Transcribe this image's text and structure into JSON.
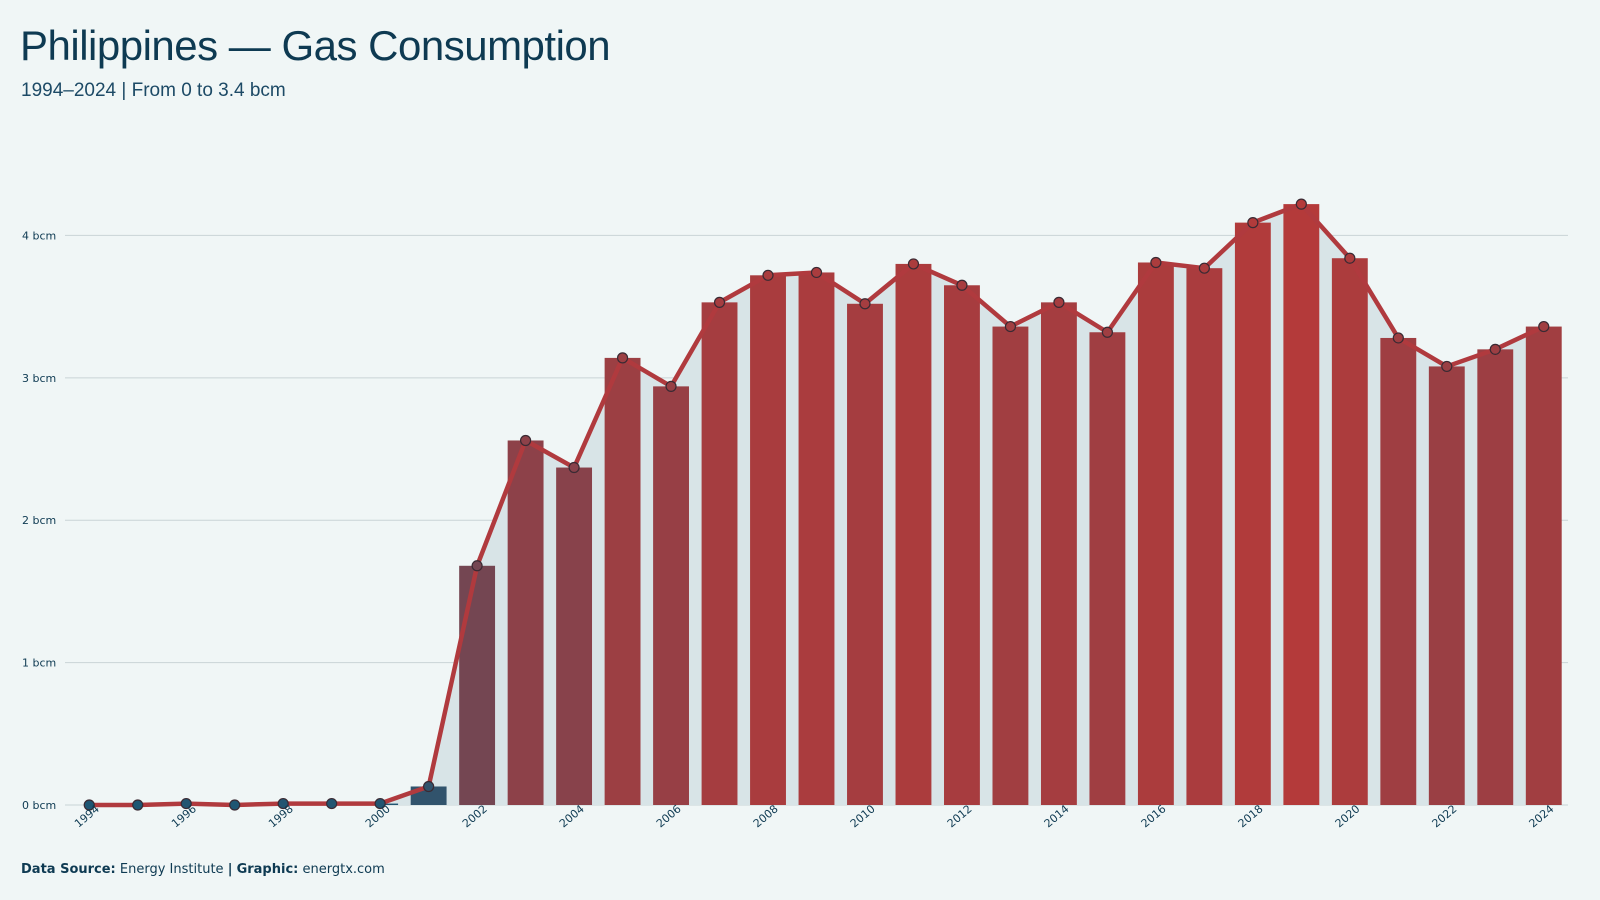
{
  "header": {
    "title": "Philippines — Gas Consumption",
    "subtitle": "1994–2024 | From 0 to 3.4 bcm"
  },
  "footer": {
    "source_label": "Data Source:",
    "source_value": "Energy Institute",
    "separator": "|",
    "graphic_label": "Graphic:",
    "graphic_value": "energtx.com"
  },
  "colors": {
    "background": "#f0f6f6",
    "line": "#b03a3e",
    "bar_low": "#1e5673",
    "bar_high": "#b43a3a",
    "area_fill": "#d8e4e7",
    "grid": "#c9d4d6"
  },
  "chart_data": {
    "type": "bar",
    "overlay": "line",
    "unit": "bcm",
    "x": [
      1994,
      1995,
      1996,
      1997,
      1998,
      1999,
      2000,
      2001,
      2002,
      2003,
      2004,
      2005,
      2006,
      2007,
      2008,
      2009,
      2010,
      2011,
      2012,
      2013,
      2014,
      2015,
      2016,
      2017,
      2018,
      2019,
      2020,
      2021,
      2022,
      2023,
      2024
    ],
    "values": [
      0,
      0,
      0.01,
      0,
      0.01,
      0.01,
      0.01,
      0.13,
      1.68,
      2.56,
      2.37,
      3.14,
      2.94,
      3.53,
      3.72,
      3.74,
      3.52,
      3.8,
      3.65,
      3.36,
      3.53,
      3.32,
      3.81,
      3.77,
      4.09,
      4.22,
      3.84,
      3.28,
      3.08,
      3.2,
      3.36
    ],
    "x_tick_labels": [
      "1994",
      "1996",
      "1998",
      "2000",
      "2002",
      "2004",
      "2006",
      "2008",
      "2010",
      "2012",
      "2014",
      "2016",
      "2018",
      "2020",
      "2022",
      "2024"
    ],
    "y_ticks": [
      0,
      1,
      2,
      3,
      4
    ],
    "y_tick_labels": [
      "0 bcm",
      "1 bcm",
      "2 bcm",
      "3 bcm",
      "4 bcm"
    ],
    "ylim": [
      0,
      4.6
    ],
    "grid": true,
    "xlabel": "",
    "ylabel": ""
  }
}
